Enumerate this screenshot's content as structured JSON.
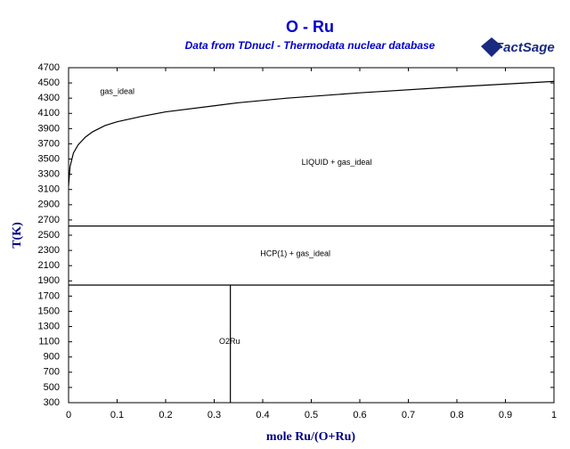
{
  "chart_data": {
    "type": "line",
    "title": "O - Ru",
    "subtitle": "Data from TDnucl - Thermodata nuclear database",
    "logo": "FactSage",
    "x_label": "mole Ru/(O+Ru)",
    "y_label": "T(K)",
    "xlim": [
      0,
      1
    ],
    "ylim": [
      300,
      4700
    ],
    "xticks": [
      0,
      0.1,
      0.2,
      0.3,
      0.4,
      0.5,
      0.6,
      0.7,
      0.8,
      0.9,
      1
    ],
    "yticks": [
      300,
      500,
      700,
      900,
      1100,
      1300,
      1500,
      1700,
      1900,
      2100,
      2300,
      2500,
      2700,
      2900,
      3100,
      3300,
      3500,
      3700,
      3900,
      4100,
      4300,
      4500,
      4700
    ],
    "series": [
      {
        "color": "#000000",
        "x": [
          0,
          0.003,
          0.01,
          0.02,
          0.035,
          0.05,
          0.075,
          0.1,
          0.15,
          0.2,
          0.3,
          0.35,
          0.45,
          0.6,
          0.8,
          1
        ],
        "values": [
          3150,
          3400,
          3580,
          3690,
          3790,
          3860,
          3940,
          3990,
          4060,
          4120,
          4200,
          4240,
          4300,
          4370,
          4450,
          4520
        ]
      },
      {
        "color": "#000000",
        "x": [
          0,
          1
        ],
        "values": [
          2620,
          2620
        ]
      },
      {
        "color": "#000000",
        "x": [
          0,
          1
        ],
        "values": [
          1845,
          1845
        ]
      },
      {
        "color": "#000000",
        "x": [
          0.3333,
          0.3333
        ],
        "values": [
          1845,
          300
        ]
      }
    ],
    "annotations": [
      "gas_ideal",
      "LIQUID + gas_ideal",
      "HCP(1) + gas_ideal",
      "O2Ru"
    ]
  }
}
